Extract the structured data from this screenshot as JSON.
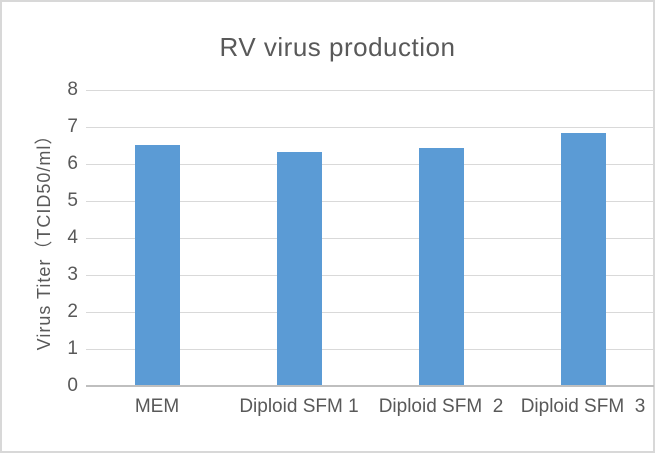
{
  "chart_data": {
    "type": "bar",
    "title": "RV virus production",
    "categories": [
      "MEM",
      "Diploid SFM 1",
      "Diploid SFM  2",
      "Diploid SFM  3"
    ],
    "values": [
      6.5,
      6.3,
      6.4,
      6.8
    ],
    "xlabel": "",
    "ylabel": "Virus Titer（TCID50/ml）",
    "ylim": [
      0,
      8
    ],
    "yticks": [
      0,
      1,
      2,
      3,
      4,
      5,
      6,
      7,
      8
    ],
    "grid": true,
    "legend": false,
    "bar_color": "#5b9bd5",
    "gridline_color": "#d9d9d9",
    "axis_line_color": "#bfbfbf",
    "text_color": "#595959",
    "frame_border_color": "#d8d8d8",
    "background_color": "#ffffff"
  }
}
